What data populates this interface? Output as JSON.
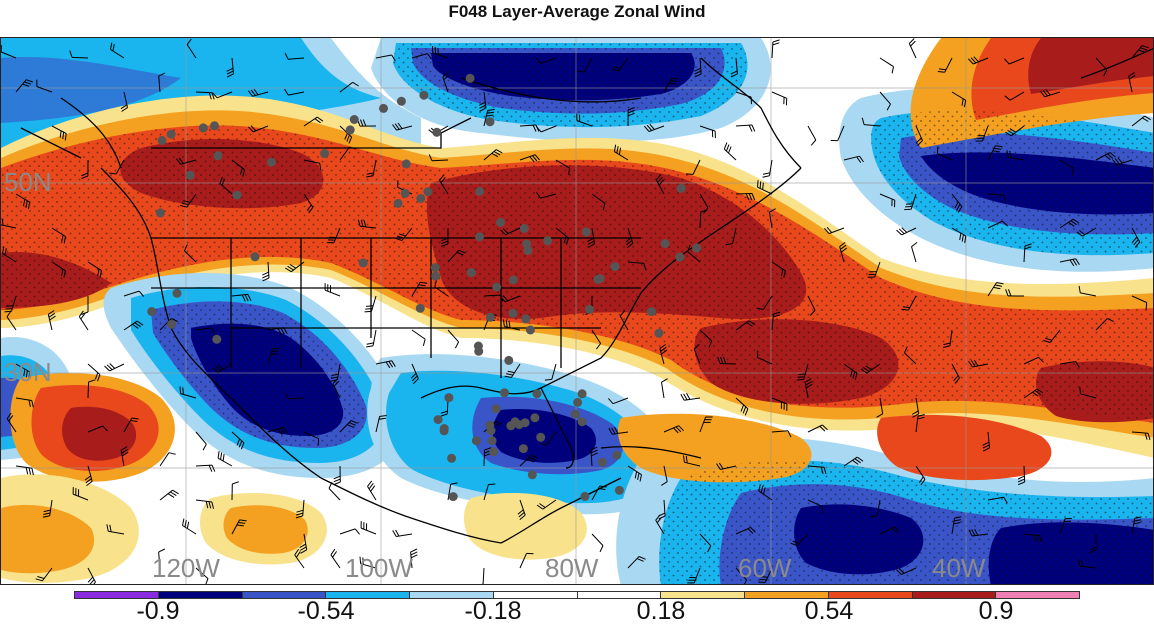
{
  "title": "F048 Layer-Average Zonal Wind",
  "lat_labels": [
    {
      "text": "50N"
    },
    {
      "text": "30N"
    }
  ],
  "lon_labels": [
    {
      "text": "120W"
    },
    {
      "text": "100W"
    },
    {
      "text": "80W"
    },
    {
      "text": "60W"
    },
    {
      "text": "40W"
    }
  ],
  "colorbar": {
    "colors": [
      "#8a2be2",
      "#00007d",
      "#3a55c8",
      "#1ab4ee",
      "#a8d8f2",
      "#ffffff",
      "#ffffff",
      "#f8e38c",
      "#f4a020",
      "#e8481c",
      "#a81c1c",
      "#f080b4"
    ],
    "tick_labels": [
      "-0.9",
      "-0.54",
      "-0.18",
      "0.18",
      "0.54",
      "0.9"
    ],
    "tick_values": [
      -0.9,
      -0.54,
      -0.18,
      0.18,
      0.54,
      0.9
    ]
  },
  "map": {
    "region": "North America and western North Atlantic",
    "variable": "Layer-Average Zonal Wind",
    "forecast_hour": "F048",
    "features": [
      "wind-barbs",
      "observation-stations",
      "coastlines",
      "state-boundaries",
      "stippling"
    ],
    "colors": {
      "strong_positive": "#a81c1c",
      "positive": "#e8481c",
      "moderate_positive": "#f4a020",
      "weak_positive": "#f8e38c",
      "weak_negative": "#a8d8f2",
      "moderate_negative": "#1ab4ee",
      "negative": "#3a55c8",
      "strong_negative": "#00007d"
    }
  }
}
